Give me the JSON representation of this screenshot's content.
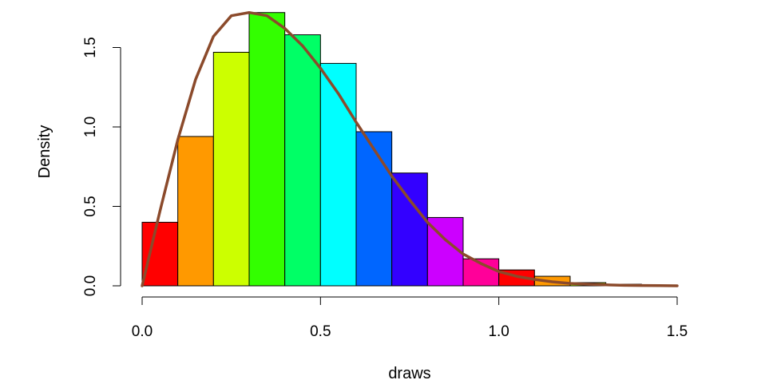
{
  "chart_data": {
    "type": "bar",
    "title": "",
    "xlabel": "draws",
    "ylabel": "Density",
    "xlim": [
      0,
      1.5
    ],
    "ylim": [
      0,
      1.72
    ],
    "grid": false,
    "x_ticks": [
      "0.0",
      "0.5",
      "1.0",
      "1.5"
    ],
    "y_ticks": [
      "0.0",
      "0.5",
      "1.0",
      "1.5"
    ],
    "bins": [
      {
        "x0": 0.0,
        "x1": 0.1,
        "density": 0.4,
        "color": "#FF0000"
      },
      {
        "x0": 0.1,
        "x1": 0.2,
        "density": 0.94,
        "color": "#FF9900"
      },
      {
        "x0": 0.2,
        "x1": 0.3,
        "density": 1.47,
        "color": "#CCFF00"
      },
      {
        "x0": 0.3,
        "x1": 0.4,
        "density": 1.72,
        "color": "#33FF00"
      },
      {
        "x0": 0.4,
        "x1": 0.5,
        "density": 1.58,
        "color": "#00FF66"
      },
      {
        "x0": 0.5,
        "x1": 0.6,
        "density": 1.4,
        "color": "#00FFFF"
      },
      {
        "x0": 0.6,
        "x1": 0.7,
        "density": 0.97,
        "color": "#0066FF"
      },
      {
        "x0": 0.7,
        "x1": 0.8,
        "density": 0.71,
        "color": "#3300FF"
      },
      {
        "x0": 0.8,
        "x1": 0.9,
        "density": 0.43,
        "color": "#CC00FF"
      },
      {
        "x0": 0.9,
        "x1": 1.0,
        "density": 0.17,
        "color": "#FF0099"
      },
      {
        "x0": 1.0,
        "x1": 1.1,
        "density": 0.1,
        "color": "#FF0000"
      },
      {
        "x0": 1.1,
        "x1": 1.2,
        "density": 0.06,
        "color": "#FF9900"
      },
      {
        "x0": 1.2,
        "x1": 1.3,
        "density": 0.02,
        "color": "#CCFF00"
      },
      {
        "x0": 1.3,
        "x1": 1.4,
        "density": 0.01,
        "color": "#33FF00"
      },
      {
        "x0": 1.4,
        "x1": 1.5,
        "density": 0.0,
        "color": "#00FF66"
      }
    ],
    "density_curve": {
      "color": "#8B4A2B",
      "x": [
        0,
        0.05,
        0.1,
        0.15,
        0.2,
        0.25,
        0.3,
        0.35,
        0.4,
        0.45,
        0.5,
        0.55,
        0.6,
        0.65,
        0.7,
        0.75,
        0.8,
        0.85,
        0.9,
        0.95,
        1.0,
        1.05,
        1.1,
        1.15,
        1.2,
        1.25,
        1.3,
        1.35,
        1.4,
        1.45,
        1.5
      ],
      "y": [
        0,
        0.47,
        0.92,
        1.3,
        1.57,
        1.7,
        1.72,
        1.7,
        1.62,
        1.51,
        1.37,
        1.21,
        1.03,
        0.86,
        0.69,
        0.54,
        0.4,
        0.29,
        0.2,
        0.14,
        0.09,
        0.06,
        0.04,
        0.025,
        0.015,
        0.01,
        0.006,
        0.003,
        0.002,
        0.001,
        0
      ]
    }
  }
}
